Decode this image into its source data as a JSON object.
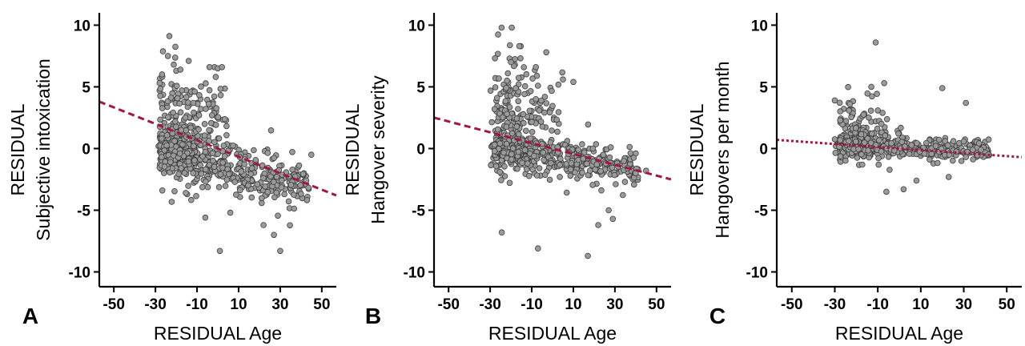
{
  "figure": {
    "colors": {
      "points": "#9a9a9a",
      "point_stroke": "#3c3c3c",
      "trend": "#a0193c",
      "axes": "#000000"
    }
  },
  "chart_data": [
    {
      "type": "scatter",
      "panel_letter": "A",
      "xlabel": "RESIDUAL Age",
      "ylabel_lines": [
        "RESIDUAL",
        "Subjective intoxication"
      ],
      "xlim": [
        -57,
        57
      ],
      "ylim": [
        -11.2,
        11
      ],
      "xticks": [
        -50,
        -30,
        -10,
        10,
        30,
        50
      ],
      "yticks": [
        10,
        5,
        0,
        -5,
        -10
      ],
      "trend": {
        "style": "dashed",
        "x": [
          -57,
          57
        ],
        "y": [
          3.8,
          -3.8
        ]
      },
      "point_cloud": {
        "n": 700,
        "x_range": [
          -29,
          44
        ],
        "y_upper": [
          -20,
          2.8,
          2.1
        ],
        "y_lower": [
          -1.3,
          -0.045,
          0.9
        ],
        "scatter_sd": 1.8,
        "upper_share": 0.35
      },
      "outliers": [
        [
          -14,
          7.1
        ],
        [
          -4,
          6.6
        ],
        [
          0,
          6.5
        ],
        [
          2,
          6.6
        ],
        [
          -20,
          6.3
        ],
        [
          -18,
          6.4
        ],
        [
          -1,
          5.8
        ],
        [
          -6,
          -5.6
        ],
        [
          1,
          -8.3
        ],
        [
          6,
          -5.2
        ],
        [
          22,
          -6.2
        ],
        [
          27,
          -7.0
        ],
        [
          30,
          -8.3
        ],
        [
          45,
          -0.5
        ],
        [
          -9,
          2.7
        ]
      ],
      "points": []
    },
    {
      "type": "scatter",
      "panel_letter": "B",
      "xlabel": "RESIDUAL Age",
      "ylabel_lines": [
        "RESIDUAL",
        "Hangover severity"
      ],
      "xlim": [
        -57,
        57
      ],
      "ylim": [
        -11.2,
        11
      ],
      "xticks": [
        -50,
        -30,
        -10,
        10,
        30,
        50
      ],
      "yticks": [
        10,
        5,
        0,
        -5,
        -10
      ],
      "trend": {
        "style": "dashed",
        "x": [
          -57,
          57
        ],
        "y": [
          2.5,
          -2.5
        ]
      },
      "point_cloud": {
        "n": 700,
        "x_range": [
          -30,
          42
        ],
        "y_upper": [
          -18,
          3.0,
          2.3
        ],
        "y_lower": [
          -0.6,
          -0.025,
          0.7
        ],
        "scatter_sd": 1.7,
        "upper_share": 0.32
      },
      "outliers": [
        [
          -16,
          8.3
        ],
        [
          -3,
          7.8
        ],
        [
          -20,
          7.0
        ],
        [
          -8,
          6.6
        ],
        [
          5,
          5.6
        ],
        [
          10,
          5.4
        ],
        [
          -7,
          -8.1
        ],
        [
          17,
          -8.7
        ],
        [
          22,
          -6.2
        ],
        [
          27,
          -5.0
        ],
        [
          29,
          -5.7
        ],
        [
          40,
          -2.0
        ],
        [
          45,
          -1.8
        ]
      ],
      "points": []
    },
    {
      "type": "scatter",
      "panel_letter": "C",
      "xlabel": "RESIDUAL Age",
      "ylabel_lines": [
        "RESIDUAL",
        "Hangovers per month"
      ],
      "xlim": [
        -57,
        57
      ],
      "ylim": [
        -11.2,
        11
      ],
      "xticks": [
        -50,
        -30,
        -10,
        10,
        30,
        50
      ],
      "yticks": [
        10,
        5,
        0,
        -5,
        -10
      ],
      "trend": {
        "style": "dotted",
        "x": [
          -57,
          57
        ],
        "y": [
          0.7,
          -0.7
        ]
      },
      "point_cloud": {
        "n": 620,
        "x_range": [
          -30,
          42
        ],
        "y_upper": [
          -15,
          1.4,
          1.2
        ],
        "y_lower": [
          0.1,
          -0.006,
          0.45
        ],
        "scatter_sd": 1.0,
        "upper_share": 0.3
      },
      "outliers": [
        [
          -11,
          8.6
        ],
        [
          -13,
          5.0
        ],
        [
          -7,
          5.3
        ],
        [
          20,
          4.9
        ],
        [
          -30,
          3.9
        ],
        [
          -23,
          3.6
        ],
        [
          31,
          3.7
        ],
        [
          -6,
          -3.5
        ],
        [
          2,
          -3.3
        ],
        [
          8,
          -2.6
        ],
        [
          23,
          -2.3
        ]
      ],
      "points": []
    }
  ]
}
